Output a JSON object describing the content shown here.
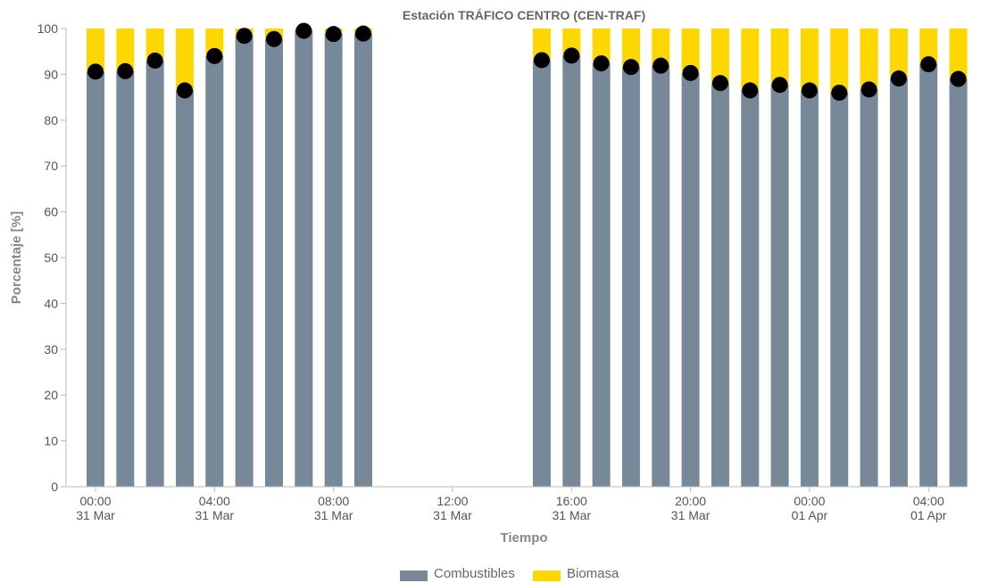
{
  "chart_data": {
    "type": "bar",
    "title": "Estación TRÁFICO CENTRO (CEN-TRAF)",
    "xlabel": "Tiempo",
    "ylabel": "Porcentaje [%]",
    "ylim": [
      0,
      100
    ],
    "yticks": [
      "0",
      "10",
      "20",
      "30",
      "40",
      "50",
      "60",
      "70",
      "80",
      "90",
      "100"
    ],
    "xticks": [
      {
        "hour": 0,
        "line1": "00:00",
        "line2": "31 Mar"
      },
      {
        "hour": 4,
        "line1": "04:00",
        "line2": "31 Mar"
      },
      {
        "hour": 8,
        "line1": "08:00",
        "line2": "31 Mar"
      },
      {
        "hour": 12,
        "line1": "12:00",
        "line2": "31 Mar"
      },
      {
        "hour": 16,
        "line1": "16:00",
        "line2": "31 Mar"
      },
      {
        "hour": 20,
        "line1": "20:00",
        "line2": "31 Mar"
      },
      {
        "hour": 24,
        "line1": "00:00",
        "line2": "01 Apr"
      },
      {
        "hour": 28,
        "line1": "04:00",
        "line2": "01 Apr"
      }
    ],
    "stacked": true,
    "grid": false,
    "legend_position": "bottom-center",
    "hours": [
      0,
      1,
      2,
      3,
      4,
      5,
      6,
      7,
      8,
      9,
      15,
      16,
      17,
      18,
      19,
      20,
      21,
      22,
      23,
      24,
      25,
      26,
      27,
      28,
      29
    ],
    "series": [
      {
        "name": "Combustibles",
        "color": "#778899",
        "values": [
          90.6,
          90.7,
          93.0,
          86.5,
          94.0,
          98.4,
          97.7,
          99.5,
          98.8,
          98.9,
          93.1,
          94.1,
          92.4,
          91.6,
          91.9,
          90.3,
          88.1,
          86.5,
          87.7,
          86.5,
          86.0,
          86.7,
          89.1,
          92.2,
          89.0
        ]
      },
      {
        "name": "Biomasa",
        "color": "#ffd700",
        "values": [
          9.4,
          9.3,
          7.0,
          13.5,
          6.0,
          1.6,
          2.3,
          0.5,
          1.2,
          1.1,
          6.9,
          5.9,
          7.6,
          8.4,
          8.1,
          9.7,
          11.9,
          13.5,
          12.3,
          13.5,
          14.0,
          13.3,
          10.9,
          7.8,
          11.0
        ]
      }
    ],
    "markers": {
      "color": "#000000",
      "values": [
        90.6,
        90.7,
        93.0,
        86.5,
        94.0,
        98.4,
        97.7,
        99.5,
        98.8,
        98.9,
        93.1,
        94.1,
        92.4,
        91.6,
        91.9,
        90.3,
        88.1,
        86.5,
        87.7,
        86.5,
        86.0,
        86.7,
        89.1,
        92.2,
        89.0
      ]
    }
  }
}
